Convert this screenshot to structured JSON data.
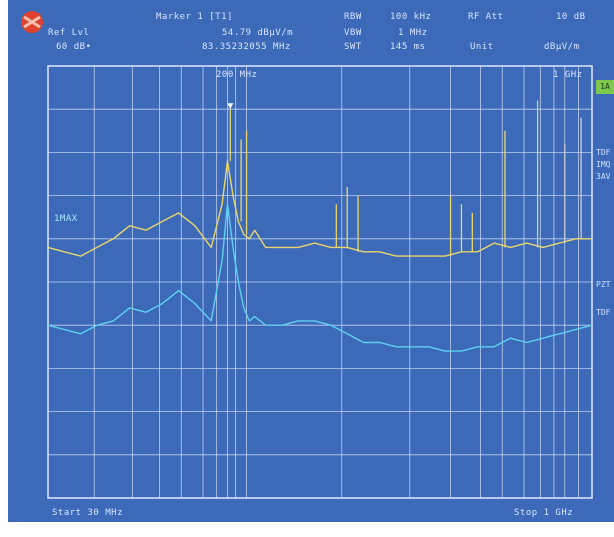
{
  "header": {
    "ref_lvl_label": "Ref Lvl",
    "ref_lvl_value": "60 dB•",
    "marker_label": "Marker 1 [T1]",
    "marker_level": "54.79 dBµV/m",
    "marker_freq": "83.35232055 MHz",
    "rbw_label": "RBW",
    "rbw_value": "100 kHz",
    "vbw_label": "VBW",
    "vbw_value": "1 MHz",
    "swt_label": "SWT",
    "swt_value": "145 ms",
    "rf_att_label": "RF Att",
    "rf_att_value": "10 dB",
    "unit_label": "Unit",
    "unit_value": "dBµV/m"
  },
  "trace_label": "1MAX",
  "right_tags": [
    "1A",
    "TDF",
    "IMQ",
    "3AV",
    "PZT",
    "TDF"
  ],
  "freq_marks": [
    "200 MHz",
    "1 GHz"
  ],
  "footer": {
    "start": "Start 30 MHz",
    "stop": "Stop 1 GHz"
  },
  "colors": {
    "background": "#3c6ab8",
    "grid": "#dfe8ff",
    "trace_yellow": "#e8d66a",
    "trace_cyan": "#5fd0f0",
    "accent_green": "#7ec850"
  },
  "chart_data": {
    "type": "line",
    "title": "",
    "xlabel": "",
    "ylabel": "",
    "xlim": [
      0,
      100
    ],
    "ylim": [
      0,
      100
    ],
    "grid": true,
    "series": [
      {
        "name": "",
        "color": "#e8d66a",
        "x": [
          0,
          3,
          6,
          9,
          12,
          15,
          18,
          21,
          24,
          27,
          30,
          32,
          33,
          34,
          35,
          36,
          37,
          38,
          40,
          43,
          46,
          49,
          52,
          55,
          58,
          61,
          64,
          67,
          70,
          73,
          76,
          79,
          82,
          85,
          88,
          91,
          94,
          97,
          100
        ],
        "values": [
          58,
          57,
          56,
          58,
          60,
          63,
          62,
          64,
          66,
          63,
          58,
          68,
          78,
          70,
          64,
          61,
          60,
          62,
          58,
          58,
          58,
          59,
          58,
          58,
          57,
          57,
          56,
          56,
          56,
          56,
          57,
          57,
          59,
          58,
          59,
          58,
          59,
          60,
          60
        ]
      },
      {
        "name": "",
        "color": "#5fd0f0",
        "x": [
          0,
          3,
          6,
          9,
          12,
          15,
          18,
          21,
          24,
          27,
          30,
          32,
          33,
          34,
          35,
          36,
          37,
          38,
          40,
          43,
          46,
          49,
          52,
          55,
          58,
          61,
          64,
          67,
          70,
          73,
          76,
          79,
          82,
          85,
          88,
          91,
          94,
          97,
          100
        ],
        "values": [
          40,
          39,
          38,
          40,
          41,
          44,
          43,
          45,
          48,
          45,
          41,
          55,
          68,
          58,
          50,
          44,
          41,
          42,
          40,
          40,
          41,
          41,
          40,
          38,
          36,
          36,
          35,
          35,
          35,
          34,
          34,
          35,
          35,
          37,
          36,
          37,
          38,
          39,
          40
        ]
      }
    ],
    "spikes": [
      {
        "x": 33.5,
        "value": 90,
        "color": "#e8d66a"
      },
      {
        "x": 35.5,
        "value": 83,
        "color": "#e8d66a"
      },
      {
        "x": 36.5,
        "value": 85,
        "color": "#e8d66a"
      },
      {
        "x": 53,
        "value": 68,
        "color": "#e8d66a"
      },
      {
        "x": 55,
        "value": 72,
        "color": "#e8d66a"
      },
      {
        "x": 57,
        "value": 70,
        "color": "#e8d66a"
      },
      {
        "x": 74,
        "value": 70,
        "color": "#e8d66a"
      },
      {
        "x": 76,
        "value": 68,
        "color": "#e8d66a"
      },
      {
        "x": 78,
        "value": 66,
        "color": "#e8d66a"
      },
      {
        "x": 84,
        "value": 85,
        "color": "#e8d66a"
      },
      {
        "x": 90,
        "value": 92,
        "color": "#cccccc"
      },
      {
        "x": 95,
        "value": 82,
        "color": "#cccccc"
      },
      {
        "x": 98,
        "value": 88,
        "color": "#cccccc"
      }
    ],
    "markers": [
      {
        "x": 33.5,
        "value": 90
      }
    ]
  }
}
